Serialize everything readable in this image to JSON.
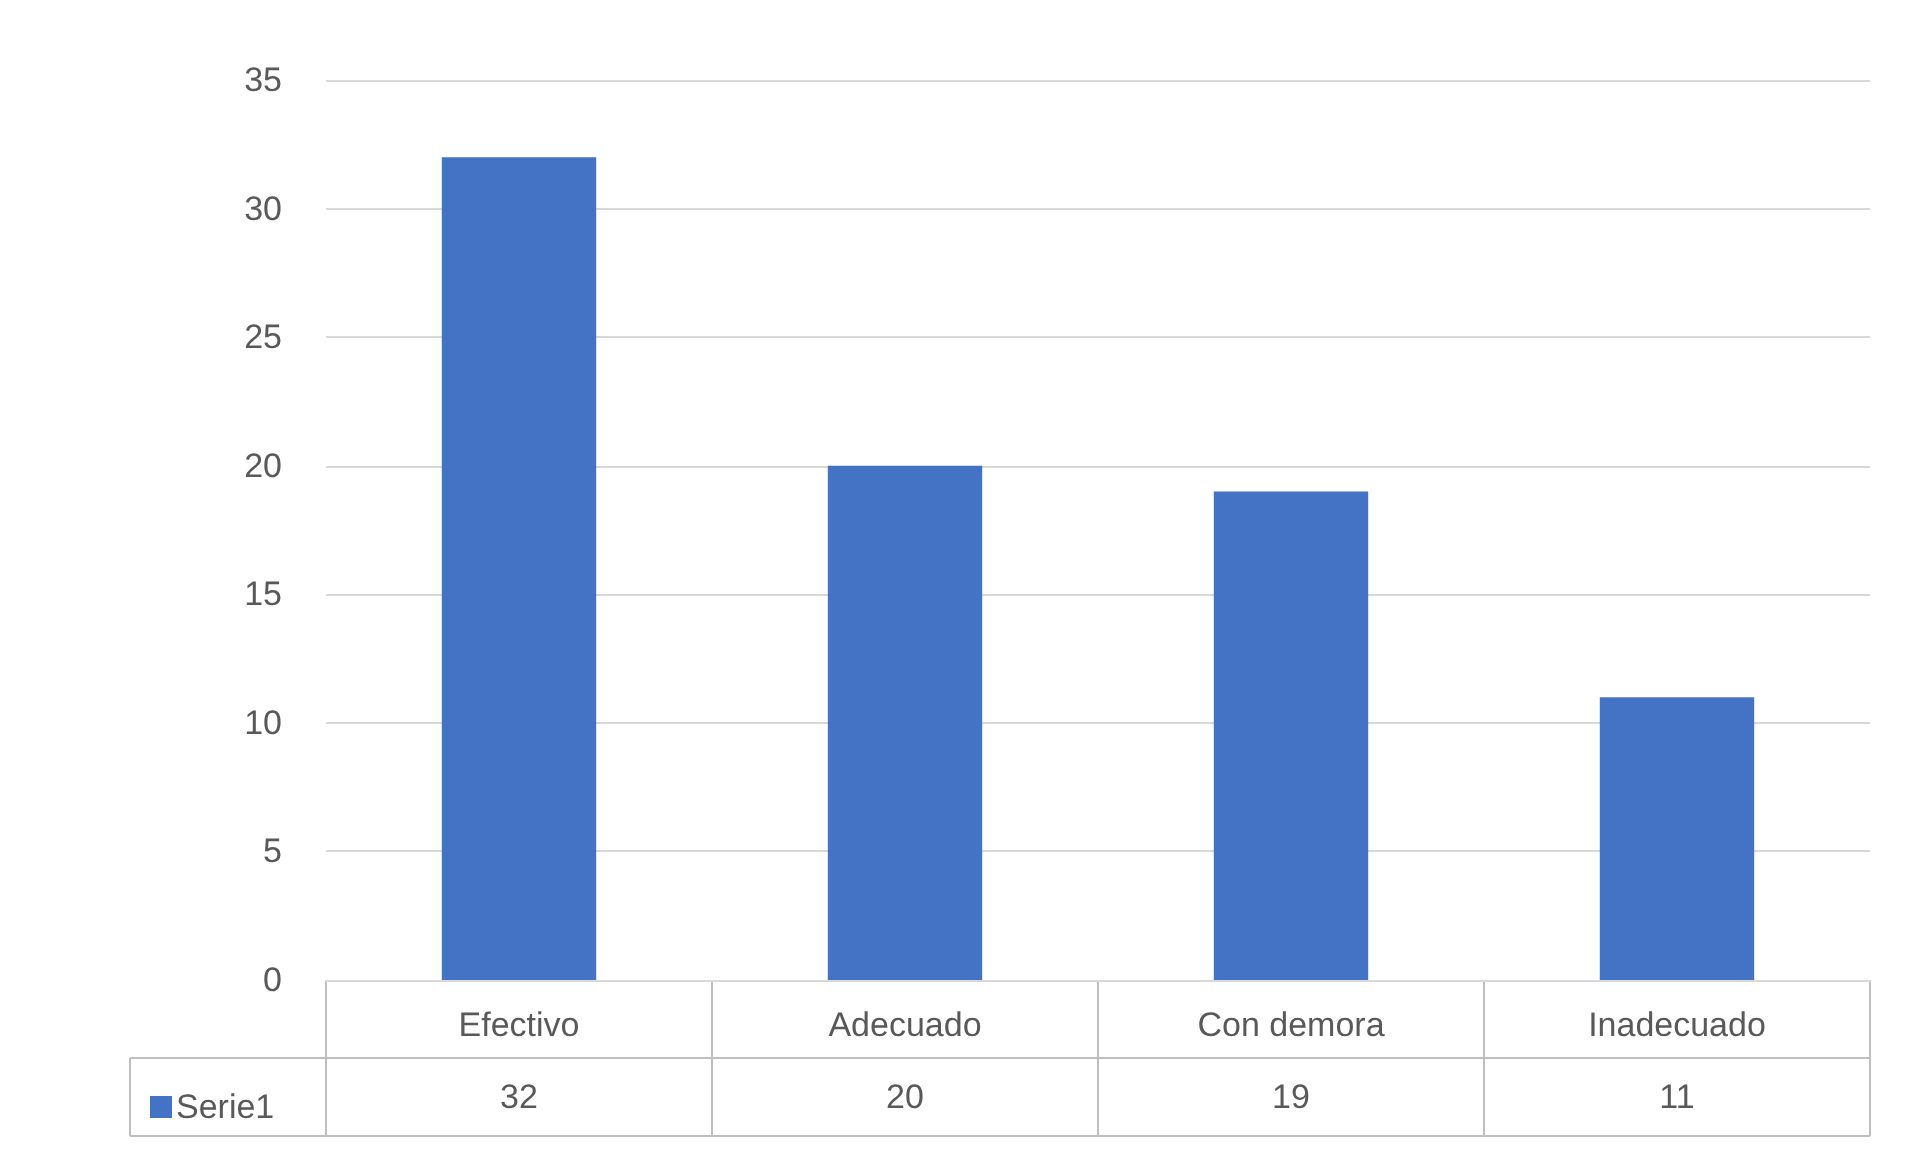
{
  "chart_data": {
    "type": "bar",
    "categories": [
      "Efectivo",
      "Adecuado",
      "Con demora",
      "Inadecuado"
    ],
    "series": [
      {
        "name": "Serie1",
        "color": "#4472c4",
        "values": [
          32,
          20,
          19,
          11
        ]
      }
    ],
    "ylim": [
      0,
      35
    ],
    "yticks": [
      0,
      5,
      10,
      15,
      20,
      25,
      30,
      35
    ],
    "grid": "y",
    "legend": "bottom left",
    "data_labels": true
  }
}
